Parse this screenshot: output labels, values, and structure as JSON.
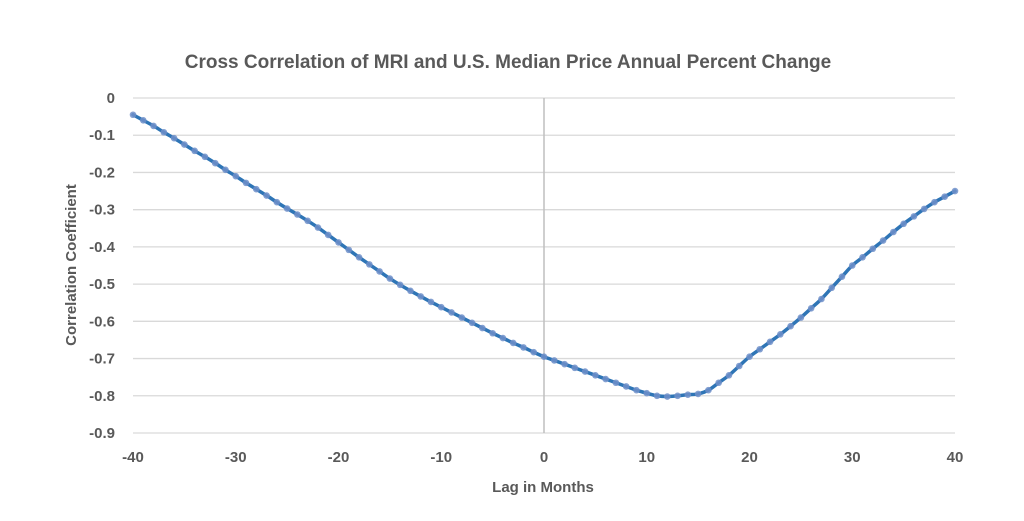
{
  "chart_data": {
    "type": "line",
    "title": "Cross Correlation of MRI and U.S. Median Price Annual Percent Change",
    "xlabel": "Lag in Months",
    "ylabel": "Correlation Coefficient",
    "xlim": [
      -40,
      40
    ],
    "ylim": [
      -0.9,
      0
    ],
    "x_ticks": [
      -40,
      -30,
      -20,
      -10,
      0,
      10,
      20,
      30,
      40
    ],
    "y_ticks": [
      0,
      -0.1,
      -0.2,
      -0.3,
      -0.4,
      -0.5,
      -0.6,
      -0.7,
      -0.8,
      -0.9
    ],
    "x_tick_labels": [
      "-40",
      "-30",
      "-20",
      "-10",
      "0",
      "10",
      "20",
      "30",
      "40"
    ],
    "y_tick_labels": [
      "0",
      "-0.1",
      "-0.2",
      "-0.3",
      "-0.4",
      "-0.5",
      "-0.6",
      "-0.7",
      "-0.8",
      "-0.9"
    ],
    "grid": true,
    "legend": "none",
    "colors": {
      "line": "#2e75b6",
      "marker": "#6f8fc9"
    },
    "x": [
      -40,
      -39,
      -38,
      -37,
      -36,
      -35,
      -34,
      -33,
      -32,
      -31,
      -30,
      -29,
      -28,
      -27,
      -26,
      -25,
      -24,
      -23,
      -22,
      -21,
      -20,
      -19,
      -18,
      -17,
      -16,
      -15,
      -14,
      -13,
      -12,
      -11,
      -10,
      -9,
      -8,
      -7,
      -6,
      -5,
      -4,
      -3,
      -2,
      -1,
      0,
      1,
      2,
      3,
      4,
      5,
      6,
      7,
      8,
      9,
      10,
      11,
      12,
      13,
      14,
      15,
      16,
      17,
      18,
      19,
      20,
      21,
      22,
      23,
      24,
      25,
      26,
      27,
      28,
      29,
      30,
      31,
      32,
      33,
      34,
      35,
      36,
      37,
      38,
      39,
      40
    ],
    "series": [
      {
        "name": "Cross Correlation",
        "values": [
          -0.045,
          -0.06,
          -0.075,
          -0.092,
          -0.108,
          -0.125,
          -0.142,
          -0.158,
          -0.175,
          -0.193,
          -0.21,
          -0.228,
          -0.245,
          -0.262,
          -0.28,
          -0.297,
          -0.313,
          -0.33,
          -0.348,
          -0.368,
          -0.388,
          -0.408,
          -0.428,
          -0.447,
          -0.466,
          -0.485,
          -0.502,
          -0.518,
          -0.533,
          -0.548,
          -0.562,
          -0.576,
          -0.59,
          -0.604,
          -0.618,
          -0.632,
          -0.645,
          -0.658,
          -0.67,
          -0.683,
          -0.695,
          -0.705,
          -0.715,
          -0.725,
          -0.735,
          -0.745,
          -0.755,
          -0.765,
          -0.775,
          -0.785,
          -0.793,
          -0.8,
          -0.802,
          -0.8,
          -0.797,
          -0.795,
          -0.785,
          -0.765,
          -0.745,
          -0.72,
          -0.695,
          -0.675,
          -0.655,
          -0.635,
          -0.613,
          -0.59,
          -0.565,
          -0.54,
          -0.51,
          -0.48,
          -0.45,
          -0.428,
          -0.405,
          -0.383,
          -0.36,
          -0.338,
          -0.318,
          -0.298,
          -0.28,
          -0.265,
          -0.25
        ]
      }
    ]
  }
}
